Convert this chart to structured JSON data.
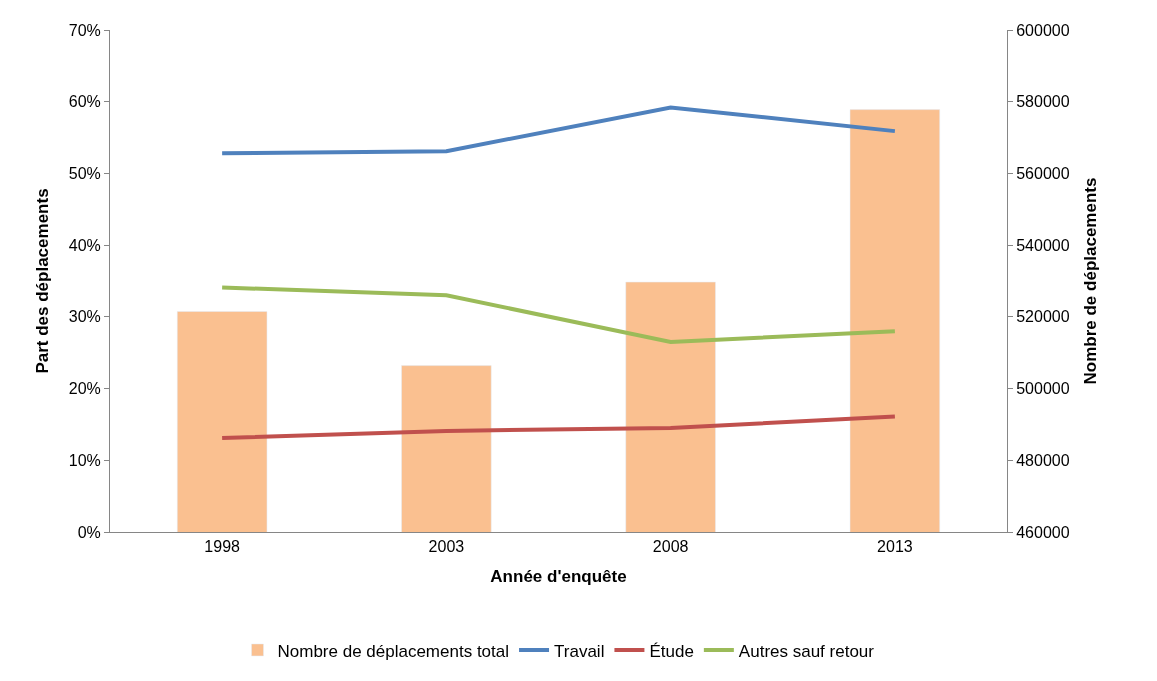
{
  "chart_data": {
    "type": "line",
    "xlabel": "Année d'enquête",
    "ylabel": "Part des déplacements",
    "y2label": "Nombre de déplacements",
    "categories": [
      "1998",
      "2003",
      "2008",
      "2013"
    ],
    "series": [
      {
        "name": "Nombre de déplacements total",
        "type": "bar",
        "axis": "y2",
        "color": "#fac090",
        "values": [
          521500,
          506400,
          529700,
          577800
        ]
      },
      {
        "name": "Travail",
        "color": "#4f81bd",
        "values": [
          0.528,
          0.531,
          0.592,
          0.559
        ]
      },
      {
        "name": "Étude",
        "color": "#c0504d",
        "values": [
          0.131,
          0.141,
          0.145,
          0.161
        ]
      },
      {
        "name": "Autres sauf retour",
        "color": "#9bbb59",
        "values": [
          0.341,
          0.33,
          0.265,
          0.28
        ]
      }
    ],
    "ylim": [
      0,
      0.7
    ],
    "yticks": [
      {
        "value": 0,
        "label": "0%"
      },
      {
        "value": 0.1,
        "label": "10%"
      },
      {
        "value": 0.2,
        "label": "20%"
      },
      {
        "value": 0.3,
        "label": "30%"
      },
      {
        "value": 0.4,
        "label": "40%"
      },
      {
        "value": 0.5,
        "label": "50%"
      },
      {
        "value": 0.6,
        "label": "60%"
      },
      {
        "value": 0.7,
        "label": "70%"
      }
    ],
    "y2lim": [
      460000,
      600000
    ],
    "y2ticks": [
      460000,
      480000,
      500000,
      520000,
      540000,
      560000,
      580000,
      600000
    ],
    "legend": "bottom"
  }
}
